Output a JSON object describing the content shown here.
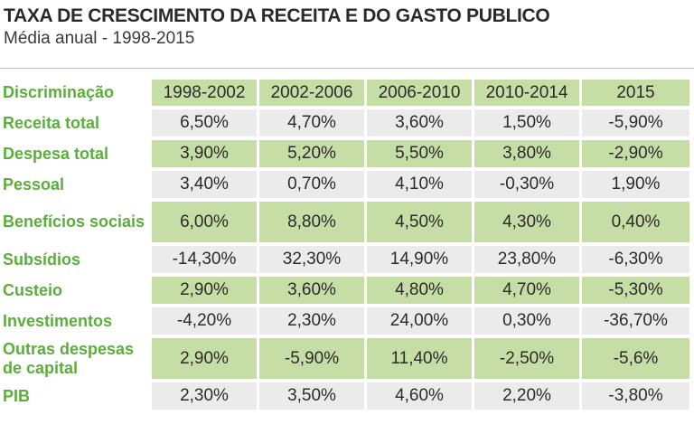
{
  "title": "TAXA DE CRESCIMENTO DA RECEITA E DO GASTO PUBLICO",
  "subtitle": "Média anual - 1998-2015",
  "colors": {
    "label_green": "#5bae3b",
    "band_green": "#c6dea5",
    "band_gray": "#ebebeb"
  },
  "chart_data": {
    "type": "table",
    "title": "TAXA DE CRESCIMENTO DA RECEITA E DO GASTO PUBLICO",
    "subtitle": "Média anual - 1998-2015",
    "header_label": "Discriminação",
    "columns": [
      "1998-2002",
      "2002-2006",
      "2006-2010",
      "2010-2014",
      "2015"
    ],
    "rows": [
      {
        "label": "Receita total",
        "values": [
          "6,50%",
          "4,70%",
          "3,60%",
          "1,50%",
          "-5,90%"
        ]
      },
      {
        "label": "Despesa total",
        "values": [
          "3,90%",
          "5,20%",
          "5,50%",
          "3,80%",
          "-2,90%"
        ]
      },
      {
        "label": "Pessoal",
        "values": [
          "3,40%",
          "0,70%",
          "4,10%",
          "-0,30%",
          "1,90%"
        ]
      },
      {
        "label": "Benefícios sociais",
        "values": [
          "6,00%",
          "8,80%",
          "4,50%",
          "4,30%",
          "0,40%"
        ]
      },
      {
        "label": "Subsídios",
        "values": [
          "-14,30%",
          "32,30%",
          "14,90%",
          "23,80%",
          "-6,30%"
        ]
      },
      {
        "label": "Custeio",
        "values": [
          "2,90%",
          "3,60%",
          "4,80%",
          "4,70%",
          "-5,30%"
        ]
      },
      {
        "label": "Investimentos",
        "values": [
          "-4,20%",
          "2,30%",
          "24,00%",
          "0,30%",
          "-36,70%"
        ]
      },
      {
        "label": "Outras despesas de capital",
        "values": [
          "2,90%",
          "-5,90%",
          "11,40%",
          "-2,50%",
          "-5,6%"
        ]
      },
      {
        "label": "PIB",
        "values": [
          "2,30%",
          "3,50%",
          "4,60%",
          "2,20%",
          "-3,80%"
        ]
      }
    ]
  }
}
